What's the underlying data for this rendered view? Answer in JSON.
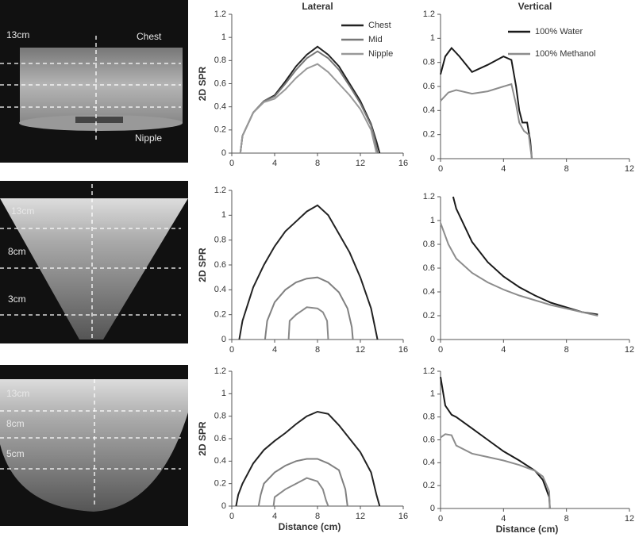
{
  "images": [
    {
      "labels": [
        "13cm",
        "Chest",
        "Nipple"
      ]
    },
    {
      "labels": [
        "13cm",
        "8cm",
        "3cm"
      ]
    },
    {
      "labels": [
        "13cm",
        "8cm",
        "5cm"
      ]
    }
  ],
  "chart_data": [
    {
      "type": "line",
      "title": "Lateral",
      "ylabel": "2D SPR",
      "xlim": [
        0,
        16
      ],
      "ylim": [
        0,
        1.2
      ],
      "xticks": [
        0,
        4,
        8,
        12,
        16
      ],
      "yticks": [
        0,
        0.2,
        0.4,
        0.6,
        0.8,
        1,
        1.2
      ],
      "legend": "upper right",
      "series": [
        {
          "name": "Chest",
          "color": "#222222",
          "x": [
            0.8,
            1,
            1.5,
            2,
            3,
            4,
            5,
            6,
            7,
            8,
            9,
            10,
            11,
            12,
            13,
            13.5,
            13.8
          ],
          "values": [
            0,
            0.15,
            0.25,
            0.35,
            0.45,
            0.5,
            0.62,
            0.75,
            0.85,
            0.92,
            0.85,
            0.75,
            0.6,
            0.45,
            0.25,
            0.1,
            0
          ]
        },
        {
          "name": "Mid",
          "color": "#777777",
          "x": [
            0.8,
            1,
            1.5,
            2,
            3,
            4,
            5,
            6,
            7,
            8,
            9,
            10,
            11,
            12,
            13,
            13.4,
            13.6
          ],
          "values": [
            0,
            0.15,
            0.25,
            0.35,
            0.45,
            0.49,
            0.6,
            0.72,
            0.82,
            0.88,
            0.82,
            0.72,
            0.58,
            0.43,
            0.24,
            0.1,
            0
          ]
        },
        {
          "name": "Nipple",
          "color": "#999999",
          "x": [
            0.8,
            1,
            2,
            3,
            4,
            5,
            6,
            7,
            8,
            9,
            10,
            11,
            12,
            13,
            13.5
          ],
          "values": [
            0,
            0.15,
            0.35,
            0.44,
            0.47,
            0.55,
            0.65,
            0.73,
            0.77,
            0.7,
            0.6,
            0.5,
            0.38,
            0.2,
            0
          ]
        }
      ]
    },
    {
      "type": "line",
      "title": "Vertical",
      "xlim": [
        0,
        12
      ],
      "ylim": [
        0,
        1.2
      ],
      "xticks": [
        0,
        4,
        8,
        12
      ],
      "yticks": [
        0,
        0.2,
        0.4,
        0.6,
        0.8,
        1,
        1.2
      ],
      "legend": "upper right",
      "series": [
        {
          "name": "100% Water",
          "color": "#1a1a1a",
          "x": [
            0,
            0.3,
            0.7,
            1.2,
            2,
            3,
            4,
            4.5,
            4.8,
            5,
            5.2,
            5.5,
            5.7,
            5.8
          ],
          "values": [
            0.7,
            0.85,
            0.92,
            0.85,
            0.72,
            0.78,
            0.85,
            0.82,
            0.6,
            0.4,
            0.3,
            0.3,
            0.15,
            0
          ]
        },
        {
          "name": "100% Methanol",
          "color": "#8c8c8c",
          "x": [
            0,
            0.5,
            1,
            2,
            3,
            4,
            4.5,
            4.8,
            5,
            5.3,
            5.6,
            5.8
          ],
          "values": [
            0.48,
            0.55,
            0.57,
            0.54,
            0.56,
            0.6,
            0.62,
            0.45,
            0.3,
            0.23,
            0.2,
            0
          ]
        }
      ]
    },
    {
      "type": "line",
      "ylabel": "2D SPR",
      "xlim": [
        0,
        16
      ],
      "ylim": [
        0,
        1.2
      ],
      "xticks": [
        0,
        4,
        8,
        12,
        16
      ],
      "yticks": [
        0,
        0.2,
        0.4,
        0.6,
        0.8,
        1,
        1.2
      ],
      "series": [
        {
          "color": "#222222",
          "x": [
            0.7,
            1,
            2,
            3,
            4,
            5,
            6,
            7,
            8,
            9,
            10,
            11,
            12,
            13,
            13.6
          ],
          "values": [
            0,
            0.15,
            0.42,
            0.6,
            0.75,
            0.87,
            0.95,
            1.03,
            1.08,
            1,
            0.85,
            0.7,
            0.5,
            0.25,
            0
          ]
        },
        {
          "color": "#808080",
          "x": [
            3.1,
            3.3,
            4,
            5,
            6,
            7,
            8,
            9,
            10,
            10.8,
            11.2,
            11.3
          ],
          "values": [
            0,
            0.15,
            0.3,
            0.4,
            0.46,
            0.49,
            0.5,
            0.46,
            0.38,
            0.25,
            0.1,
            0
          ]
        },
        {
          "color": "#888888",
          "x": [
            5.3,
            5.4,
            6,
            7,
            8,
            8.5,
            8.9,
            9
          ],
          "values": [
            0,
            0.15,
            0.2,
            0.26,
            0.25,
            0.22,
            0.15,
            0
          ]
        }
      ]
    },
    {
      "type": "line",
      "xlim": [
        0,
        12
      ],
      "ylim": [
        0,
        1.2
      ],
      "xticks": [
        0,
        4,
        8,
        12
      ],
      "yticks": [
        0,
        0.2,
        0.4,
        0.6,
        0.8,
        1,
        1.2
      ],
      "series": [
        {
          "color": "#1a1a1a",
          "x": [
            0.8,
            1,
            2,
            3,
            4,
            5,
            6,
            7,
            8,
            9,
            10
          ],
          "values": [
            1.2,
            1.1,
            0.82,
            0.65,
            0.53,
            0.44,
            0.37,
            0.31,
            0.27,
            0.23,
            0.21
          ]
        },
        {
          "color": "#8c8c8c",
          "x": [
            0,
            0.5,
            1,
            2,
            3,
            4,
            5,
            6,
            7,
            8,
            9,
            10
          ],
          "values": [
            0.98,
            0.8,
            0.68,
            0.56,
            0.48,
            0.42,
            0.37,
            0.33,
            0.29,
            0.26,
            0.23,
            0.2
          ]
        }
      ]
    },
    {
      "type": "line",
      "ylabel": "2D SPR",
      "xlabel": "Distance (cm)",
      "xlim": [
        0,
        16
      ],
      "ylim": [
        0,
        1.2
      ],
      "xticks": [
        0,
        4,
        8,
        12,
        16
      ],
      "yticks": [
        0,
        0.2,
        0.4,
        0.6,
        0.8,
        1,
        1.2
      ],
      "series": [
        {
          "color": "#222222",
          "x": [
            0.4,
            0.6,
            1,
            2,
            3,
            4,
            5,
            6,
            7,
            8,
            9,
            10,
            11,
            12,
            13,
            13.5,
            13.8
          ],
          "values": [
            0,
            0.1,
            0.2,
            0.38,
            0.5,
            0.58,
            0.65,
            0.73,
            0.8,
            0.84,
            0.82,
            0.72,
            0.6,
            0.48,
            0.3,
            0.1,
            0
          ]
        },
        {
          "color": "#808080",
          "x": [
            2.5,
            2.7,
            3,
            4,
            5,
            6,
            7,
            8,
            9,
            10,
            10.6,
            10.8
          ],
          "values": [
            0,
            0.1,
            0.2,
            0.3,
            0.36,
            0.4,
            0.42,
            0.42,
            0.38,
            0.32,
            0.15,
            0
          ]
        },
        {
          "color": "#888888",
          "x": [
            3.9,
            4,
            5,
            6,
            7,
            8,
            8.5,
            8.8,
            9
          ],
          "values": [
            0,
            0.08,
            0.15,
            0.2,
            0.25,
            0.22,
            0.15,
            0.05,
            0
          ]
        }
      ]
    },
    {
      "type": "line",
      "xlabel": "Distance (cm)",
      "xlim": [
        0,
        12
      ],
      "ylim": [
        0,
        1.2
      ],
      "xticks": [
        0,
        4,
        8,
        12
      ],
      "yticks": [
        0,
        0.2,
        0.4,
        0.6,
        0.8,
        1,
        1.2
      ],
      "series": [
        {
          "color": "#1a1a1a",
          "x": [
            0,
            0.3,
            0.7,
            1,
            2,
            3,
            4,
            5,
            6,
            6.5,
            6.9,
            6.95
          ],
          "values": [
            1.15,
            0.9,
            0.82,
            0.8,
            0.7,
            0.6,
            0.5,
            0.42,
            0.33,
            0.25,
            0.1,
            0
          ]
        },
        {
          "color": "#8c8c8c",
          "x": [
            0,
            0.3,
            0.7,
            1,
            2,
            3,
            4,
            5,
            6,
            6.5,
            6.9,
            6.95
          ],
          "values": [
            0.62,
            0.65,
            0.64,
            0.55,
            0.48,
            0.45,
            0.42,
            0.38,
            0.33,
            0.28,
            0.15,
            0
          ]
        }
      ]
    }
  ]
}
